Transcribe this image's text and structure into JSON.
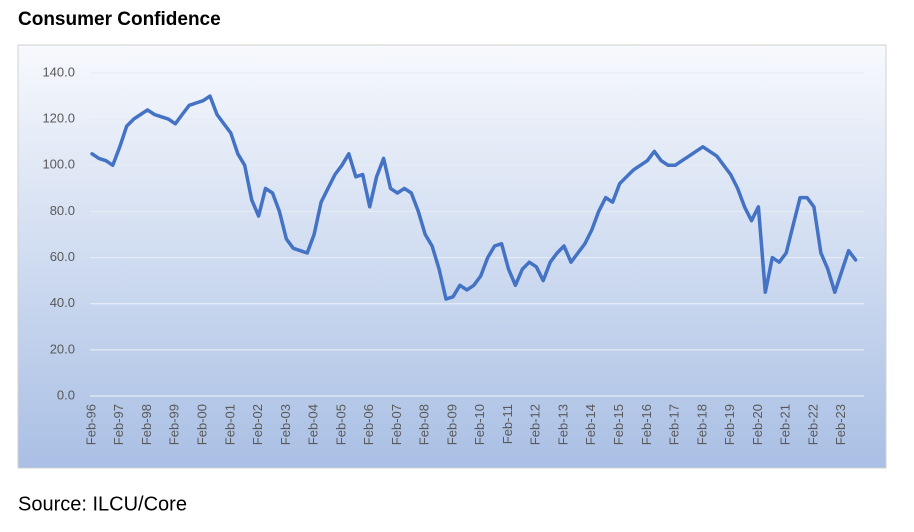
{
  "chart_data": {
    "type": "line",
    "title": "Consumer Confidence",
    "source": "Source: ILCU/Core",
    "categories": [
      "Feb-96",
      null,
      null,
      null,
      "Feb-97",
      null,
      null,
      null,
      "Feb-98",
      null,
      null,
      null,
      "Feb-99",
      null,
      null,
      null,
      "Feb-00",
      null,
      null,
      null,
      "Feb-01",
      null,
      null,
      null,
      "Feb-02",
      null,
      null,
      null,
      "Feb-03",
      null,
      null,
      null,
      "Feb-04",
      null,
      null,
      null,
      "Feb-05",
      null,
      null,
      null,
      "Feb-06",
      null,
      null,
      null,
      "Feb-07",
      null,
      null,
      null,
      "Feb-08",
      null,
      null,
      null,
      "Feb-09",
      null,
      null,
      null,
      "Feb-10",
      null,
      null,
      null,
      "Feb-11",
      null,
      null,
      null,
      "Feb-12",
      null,
      null,
      null,
      "Feb-13",
      null,
      null,
      null,
      "Feb-14",
      null,
      null,
      null,
      "Feb-15",
      null,
      null,
      null,
      "Feb-16",
      null,
      null,
      null,
      "Feb-17",
      null,
      null,
      null,
      "Feb-18",
      null,
      null,
      null,
      "Feb-19",
      null,
      null,
      null,
      "Feb-20",
      null,
      null,
      null,
      "Feb-21",
      null,
      null,
      null,
      "Feb-22",
      null,
      null,
      null,
      "Feb-23",
      null,
      null
    ],
    "series": [
      {
        "name": "Consumer Confidence",
        "color": "#4472c4",
        "values": [
          105,
          103,
          102,
          100,
          108,
          117,
          120,
          122,
          124,
          122,
          121,
          120,
          118,
          122,
          126,
          127,
          128,
          130,
          122,
          118,
          114,
          105,
          100,
          85,
          78,
          90,
          88,
          80,
          68,
          64,
          63,
          62,
          70,
          84,
          90,
          96,
          100,
          105,
          95,
          96,
          82,
          95,
          103,
          90,
          88,
          90,
          88,
          80,
          70,
          65,
          55,
          42,
          43,
          48,
          46,
          48,
          52,
          60,
          65,
          66,
          55,
          48,
          55,
          58,
          56,
          50,
          58,
          62,
          65,
          58,
          62,
          66,
          72,
          80,
          86,
          84,
          92,
          95,
          98,
          100,
          102,
          106,
          102,
          100,
          100,
          102,
          104,
          106,
          108,
          106,
          104,
          100,
          96,
          90,
          82,
          76,
          82,
          45,
          60,
          58,
          62,
          74,
          86,
          86,
          82,
          62,
          55,
          45,
          54,
          63,
          59
        ]
      }
    ],
    "ylim": [
      0,
      140
    ],
    "yticks": [
      {
        "value": 0,
        "label": "0.0"
      },
      {
        "value": 20,
        "label": "20.0"
      },
      {
        "value": 40,
        "label": "40.0"
      },
      {
        "value": 60,
        "label": "60.0"
      },
      {
        "value": 80,
        "label": "80.0"
      },
      {
        "value": 100,
        "label": "100.0"
      },
      {
        "value": 120,
        "label": "120.0"
      },
      {
        "value": 140,
        "label": "140.0"
      }
    ],
    "grid": true
  }
}
